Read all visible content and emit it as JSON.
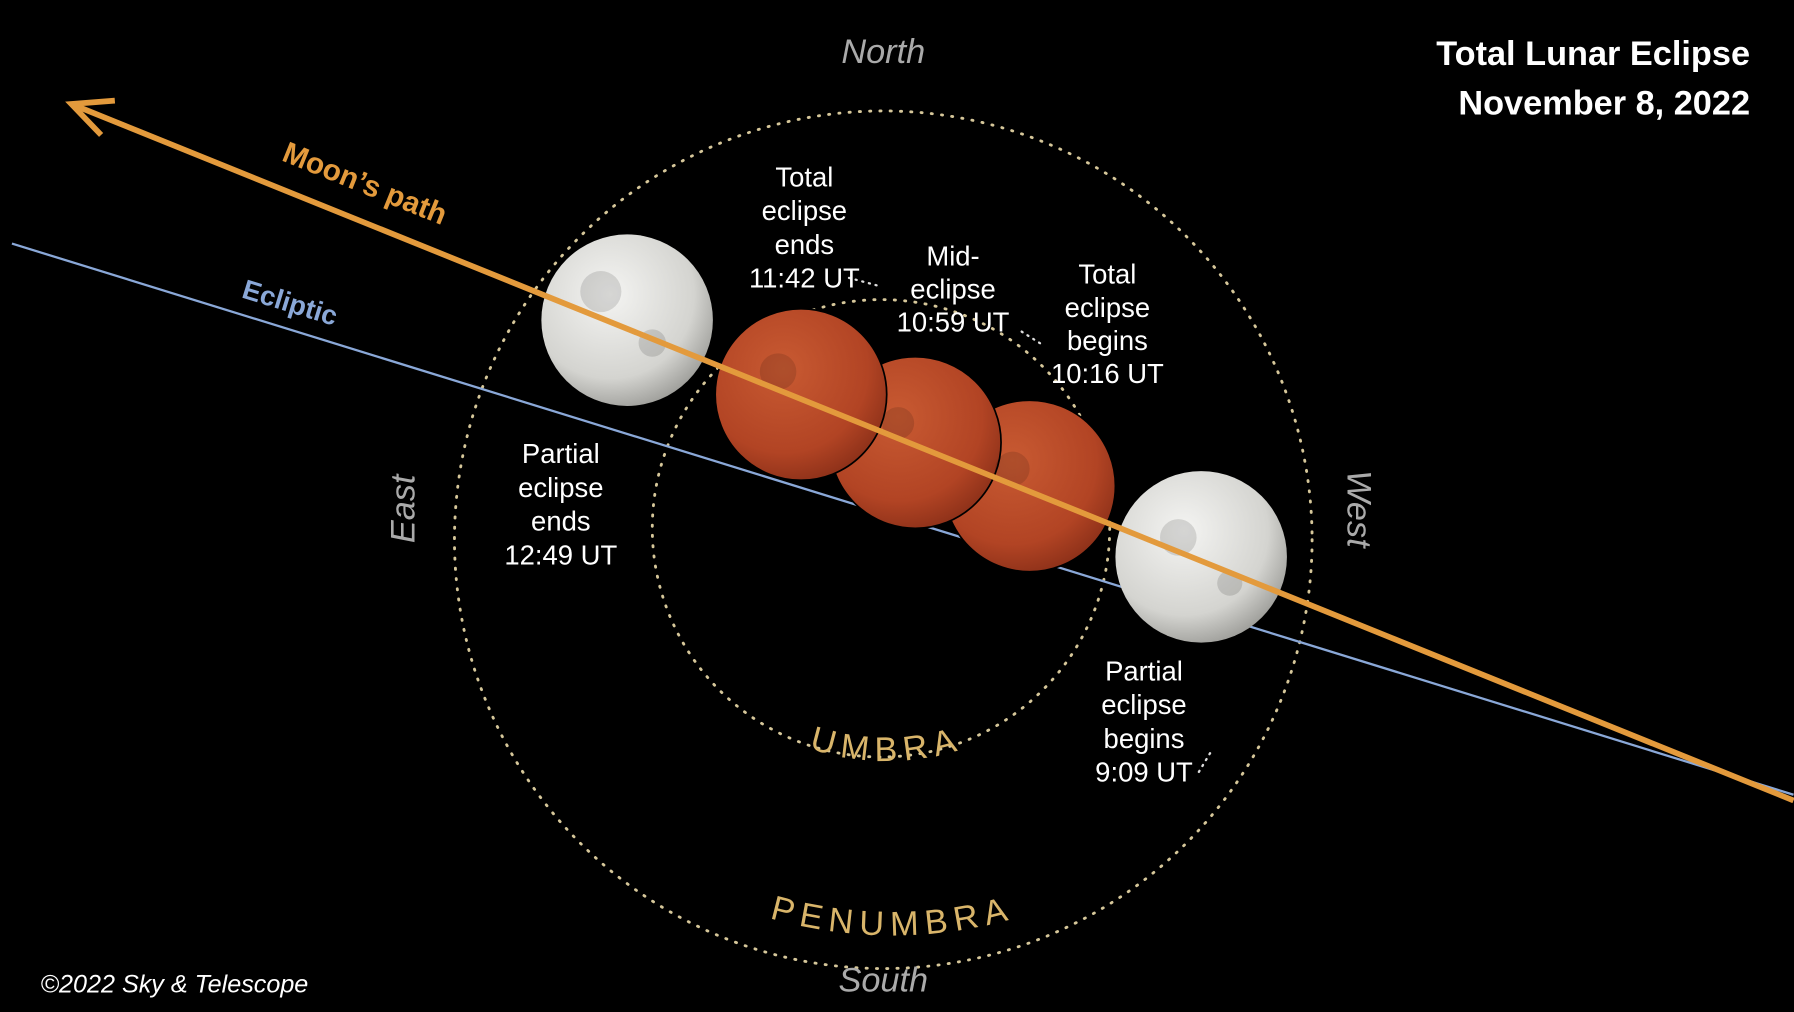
{
  "title": [
    "Total Lunar Eclipse",
    "November 8, 2022"
  ],
  "directions": {
    "north": "North",
    "south": "South",
    "east": "East",
    "west": "West"
  },
  "paths": {
    "moon": "Moon’s path",
    "ecliptic": "Ecliptic"
  },
  "regions": {
    "umbra": "UMBRA",
    "penumbra": "PENUMBRA"
  },
  "events": [
    {
      "lines": [
        "Total",
        "eclipse",
        "ends",
        "11:42 UT"
      ]
    },
    {
      "lines": [
        "Mid-",
        "eclipse",
        "10:59 UT"
      ]
    },
    {
      "lines": [
        "Total",
        "eclipse",
        "begins",
        "10:16 UT"
      ]
    },
    {
      "lines": [
        "Partial",
        "eclipse",
        "ends",
        "12:49 UT"
      ]
    },
    {
      "lines": [
        "Partial",
        "eclipse",
        "begins",
        "9:09 UT"
      ]
    }
  ],
  "credit": "©2022 Sky & Telescope"
}
